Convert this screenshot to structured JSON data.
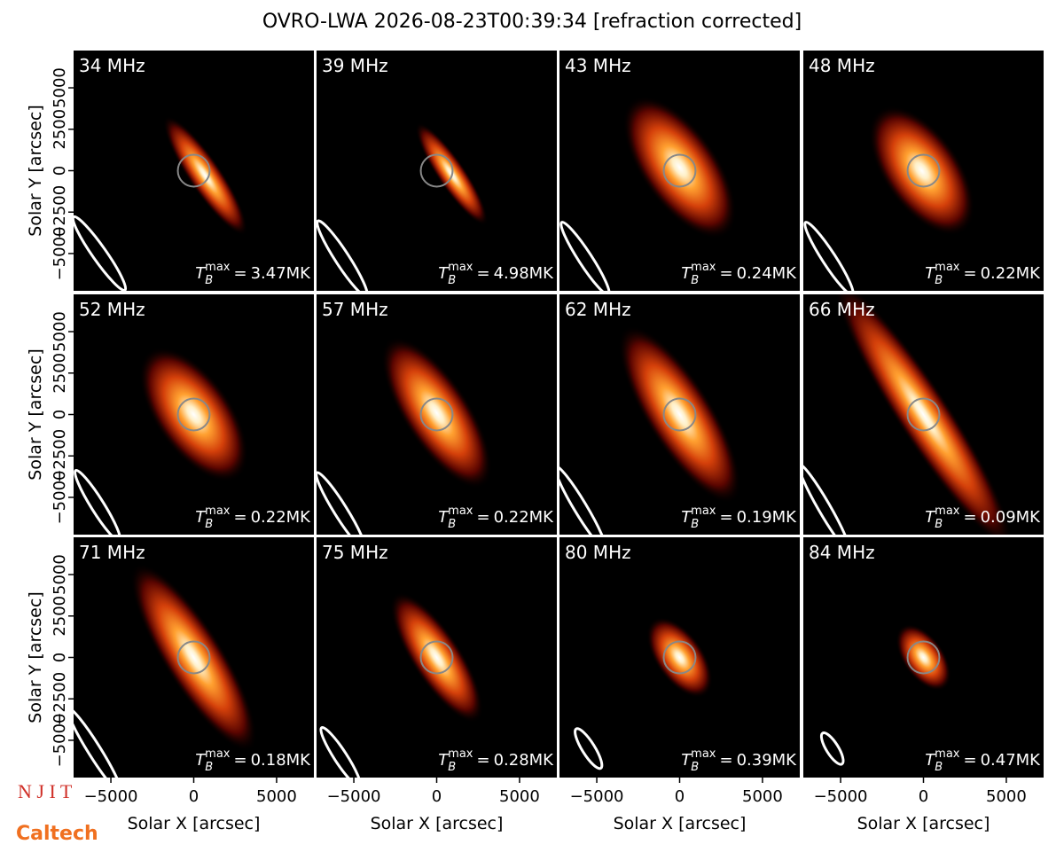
{
  "title": "OVRO-LWA 2026-08-23T00:39:34 [refraction corrected]",
  "x_label": "Solar X [arcsec]",
  "y_label": "Solar Y [arcsec]",
  "xlim": [
    -7250,
    7250
  ],
  "ylim": [
    -7250,
    7250
  ],
  "xticks": [
    {
      "value": -5000,
      "label": "−5000"
    },
    0,
    5000
  ],
  "yticks": [
    {
      "value": -5000,
      "label": "−5000"
    },
    {
      "value": -2500,
      "label": "−2500"
    },
    0,
    2500,
    5000
  ],
  "tb_symbol": {
    "base": "T",
    "sub": "B",
    "sup": "max",
    "equals": "="
  },
  "panels": [
    {
      "freq": "34 MHz",
      "tb_max": "3.47MK"
    },
    {
      "freq": "39 MHz",
      "tb_max": "4.98MK"
    },
    {
      "freq": "43 MHz",
      "tb_max": "0.24MK"
    },
    {
      "freq": "48 MHz",
      "tb_max": "0.22MK"
    },
    {
      "freq": "52 MHz",
      "tb_max": "0.22MK"
    },
    {
      "freq": "57 MHz",
      "tb_max": "0.22MK"
    },
    {
      "freq": "62 MHz",
      "tb_max": "0.19MK"
    },
    {
      "freq": "66 MHz",
      "tb_max": "0.09MK"
    },
    {
      "freq": "71 MHz",
      "tb_max": "0.18MK"
    },
    {
      "freq": "75 MHz",
      "tb_max": "0.28MK"
    },
    {
      "freq": "80 MHz",
      "tb_max": "0.39MK"
    },
    {
      "freq": "84 MHz",
      "tb_max": "0.47MK"
    }
  ],
  "logos": {
    "njit": "N J I T",
    "caltech": "Caltech"
  }
}
